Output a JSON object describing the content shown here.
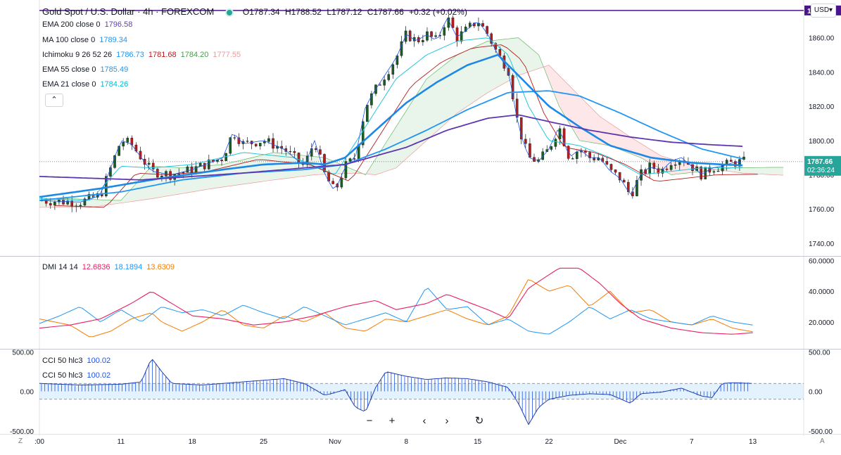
{
  "header": {
    "symbol": "Gold Spot / U.S. Dollar · 4h · FOREXCOM",
    "ohlc": {
      "o": "O1787.34",
      "h": "H1788.52",
      "l": "L1787.12",
      "c": "C1787.66",
      "chg": "+0.32 (+0.02%)"
    },
    "currency": "USD▾"
  },
  "indicators": [
    {
      "label": "EMA 200 close 0",
      "value": "1796.58",
      "color": "#673ab7"
    },
    {
      "label": "MA 100 close 0",
      "value": "1789.34",
      "color": "#2196f3"
    },
    {
      "label": "EMA 55 close 0",
      "value": "1785.49",
      "color": "#2196f3"
    },
    {
      "label": "EMA 21 close 0",
      "value": "1784.26",
      "color": "#00bcd4"
    }
  ],
  "ichimoku": {
    "label": "Ichimoku 9 26 52 26",
    "values": [
      "1786.73",
      "1781.68",
      "1784.20",
      "1777.55"
    ],
    "colors": [
      "#2196f3",
      "#b71c1c",
      "#43a047",
      "#ef9a9a"
    ]
  },
  "dmi": {
    "label": "DMI 14 14",
    "values": [
      "12.6836",
      "18.1894",
      "13.6309"
    ],
    "colors": [
      "#e91e63",
      "#2196f3",
      "#f57c00"
    ]
  },
  "cci": [
    {
      "label": "CCI 50 hlc3",
      "value": "100.02"
    },
    {
      "label": "CCI 50 hlc3",
      "value": "100.02"
    }
  ],
  "price_tags": {
    "hline": "1875.90",
    "last": "1787.66",
    "countdown": "02:36:24"
  },
  "toolbar": {
    "zoom_out": "−",
    "zoom_in": "+",
    "back": "‹",
    "forward": "›",
    "reset": "↻"
  },
  "corners": {
    "left": "Z",
    "right": "A"
  },
  "chart_data": {
    "type": "candlestick",
    "price_axis": {
      "ticks": [
        1740,
        1760,
        1780,
        1800,
        1820,
        1840,
        1860,
        1880
      ],
      "ylim": [
        1733,
        1882
      ]
    },
    "dmi_axis": {
      "ticks": [
        20,
        40,
        60
      ],
      "ylim": [
        3,
        62
      ]
    },
    "cci_axis": {
      "ticks": [
        -500,
        0,
        500
      ],
      "ylim": [
        -520,
        520
      ]
    },
    "x_labels": [
      ":00",
      "11",
      "18",
      "25",
      "Nov",
      "8",
      "15",
      "22",
      "Dec",
      "7",
      "13"
    ],
    "x_positions": [
      0,
      8,
      15,
      22,
      29,
      36,
      43,
      50,
      57,
      64,
      70
    ],
    "x_range": [
      0,
      75
    ],
    "horizontal_line": 1875.9,
    "last_price": 1787.66,
    "close_anchors": [
      [
        0,
        1765
      ],
      [
        4,
        1764
      ],
      [
        6,
        1768
      ],
      [
        8,
        1800
      ],
      [
        9,
        1798
      ],
      [
        11,
        1782
      ],
      [
        13,
        1780
      ],
      [
        15,
        1783
      ],
      [
        18,
        1790
      ],
      [
        19,
        1805
      ],
      [
        20,
        1798
      ],
      [
        22,
        1800
      ],
      [
        24,
        1795
      ],
      [
        26,
        1785
      ],
      [
        27,
        1800
      ],
      [
        28,
        1780
      ],
      [
        29,
        1770
      ],
      [
        30,
        1785
      ],
      [
        31,
        1790
      ],
      [
        32,
        1820
      ],
      [
        33,
        1830
      ],
      [
        35,
        1848
      ],
      [
        36,
        1862
      ],
      [
        37,
        1858
      ],
      [
        38,
        1862
      ],
      [
        39,
        1858
      ],
      [
        40,
        1872
      ],
      [
        41,
        1860
      ],
      [
        42,
        1865
      ],
      [
        43,
        1870
      ],
      [
        44,
        1862
      ],
      [
        45,
        1850
      ],
      [
        46,
        1842
      ],
      [
        47,
        1808
      ],
      [
        48,
        1790
      ],
      [
        49,
        1788
      ],
      [
        50,
        1795
      ],
      [
        51,
        1808
      ],
      [
        52,
        1790
      ],
      [
        53,
        1795
      ],
      [
        54,
        1790
      ],
      [
        55,
        1790
      ],
      [
        56,
        1782
      ],
      [
        57,
        1778
      ],
      [
        58,
        1768
      ],
      [
        59,
        1780
      ],
      [
        60,
        1785
      ],
      [
        61,
        1782
      ],
      [
        62,
        1788
      ],
      [
        63,
        1790
      ],
      [
        64,
        1785
      ],
      [
        65,
        1780
      ],
      [
        66,
        1784
      ],
      [
        67,
        1785
      ],
      [
        68,
        1787
      ],
      [
        69,
        1787.6
      ]
    ],
    "ema200": [
      [
        0,
        1779
      ],
      [
        10,
        1777
      ],
      [
        20,
        1781
      ],
      [
        30,
        1786
      ],
      [
        36,
        1796
      ],
      [
        40,
        1806
      ],
      [
        44,
        1813
      ],
      [
        47,
        1815
      ],
      [
        50,
        1811
      ],
      [
        54,
        1806
      ],
      [
        58,
        1802
      ],
      [
        62,
        1799
      ],
      [
        66,
        1797.5
      ],
      [
        69,
        1796.6
      ]
    ],
    "ma100": [
      [
        0,
        1765
      ],
      [
        8,
        1770
      ],
      [
        14,
        1777
      ],
      [
        20,
        1781
      ],
      [
        26,
        1783
      ],
      [
        30,
        1786
      ],
      [
        34,
        1795
      ],
      [
        38,
        1806
      ],
      [
        42,
        1818
      ],
      [
        46,
        1828
      ],
      [
        50,
        1829
      ],
      [
        53,
        1826
      ],
      [
        57,
        1816
      ],
      [
        61,
        1805
      ],
      [
        65,
        1795
      ],
      [
        69,
        1789.3
      ]
    ],
    "ema55": [
      [
        0,
        1767
      ],
      [
        6,
        1772
      ],
      [
        12,
        1778
      ],
      [
        18,
        1783
      ],
      [
        22,
        1786
      ],
      [
        26,
        1787
      ],
      [
        28,
        1786
      ],
      [
        30,
        1790
      ],
      [
        33,
        1806
      ],
      [
        36,
        1822
      ],
      [
        39,
        1834
      ],
      [
        42,
        1844
      ],
      [
        45,
        1850
      ],
      [
        47,
        1838
      ],
      [
        50,
        1820
      ],
      [
        53,
        1808
      ],
      [
        56,
        1797
      ],
      [
        60,
        1790
      ],
      [
        64,
        1787
      ],
      [
        67,
        1786
      ],
      [
        69,
        1785.5
      ]
    ],
    "ema21": [
      [
        0,
        1766
      ],
      [
        5,
        1765
      ],
      [
        8,
        1785
      ],
      [
        11,
        1784
      ],
      [
        15,
        1786
      ],
      [
        20,
        1793
      ],
      [
        25,
        1790
      ],
      [
        29,
        1780
      ],
      [
        32,
        1808
      ],
      [
        35,
        1836
      ],
      [
        38,
        1850
      ],
      [
        41,
        1858
      ],
      [
        44,
        1860
      ],
      [
        46,
        1850
      ],
      [
        48,
        1820
      ],
      [
        50,
        1800
      ],
      [
        53,
        1797
      ],
      [
        56,
        1790
      ],
      [
        59,
        1780
      ],
      [
        62,
        1782
      ],
      [
        65,
        1784
      ],
      [
        69,
        1784.3
      ]
    ],
    "dmi_plus": [
      [
        0,
        16
      ],
      [
        3,
        18
      ],
      [
        6,
        22
      ],
      [
        9,
        32
      ],
      [
        11,
        40
      ],
      [
        13,
        32
      ],
      [
        15,
        24
      ],
      [
        18,
        22
      ],
      [
        21,
        18
      ],
      [
        24,
        20
      ],
      [
        27,
        24
      ],
      [
        30,
        30
      ],
      [
        33,
        34
      ],
      [
        35,
        28
      ],
      [
        38,
        32
      ],
      [
        40,
        38
      ],
      [
        42,
        33
      ],
      [
        44,
        28
      ],
      [
        46,
        22
      ],
      [
        48,
        42
      ],
      [
        51,
        55
      ],
      [
        53,
        55
      ],
      [
        55,
        45
      ],
      [
        57,
        32
      ],
      [
        59,
        22
      ],
      [
        62,
        16
      ],
      [
        65,
        13
      ],
      [
        68,
        12
      ],
      [
        70,
        13
      ]
    ],
    "dmi_minus": [
      [
        0,
        19
      ],
      [
        2,
        24
      ],
      [
        4,
        30
      ],
      [
        6,
        20
      ],
      [
        8,
        28
      ],
      [
        10,
        20
      ],
      [
        12,
        30
      ],
      [
        14,
        26
      ],
      [
        16,
        28
      ],
      [
        18,
        24
      ],
      [
        20,
        31
      ],
      [
        22,
        26
      ],
      [
        24,
        22
      ],
      [
        26,
        30
      ],
      [
        28,
        24
      ],
      [
        30,
        18
      ],
      [
        32,
        22
      ],
      [
        34,
        26
      ],
      [
        36,
        20
      ],
      [
        38,
        43
      ],
      [
        40,
        28
      ],
      [
        42,
        30
      ],
      [
        44,
        18
      ],
      [
        46,
        22
      ],
      [
        48,
        14
      ],
      [
        50,
        12
      ],
      [
        52,
        20
      ],
      [
        54,
        30
      ],
      [
        56,
        22
      ],
      [
        58,
        28
      ],
      [
        60,
        22
      ],
      [
        62,
        20
      ],
      [
        64,
        18
      ],
      [
        66,
        24
      ],
      [
        68,
        20
      ],
      [
        70,
        18
      ]
    ],
    "adx": [
      [
        0,
        22
      ],
      [
        3,
        18
      ],
      [
        5,
        10
      ],
      [
        7,
        14
      ],
      [
        9,
        22
      ],
      [
        11,
        26
      ],
      [
        12,
        20
      ],
      [
        14,
        14
      ],
      [
        16,
        20
      ],
      [
        18,
        28
      ],
      [
        20,
        18
      ],
      [
        22,
        16
      ],
      [
        24,
        24
      ],
      [
        26,
        20
      ],
      [
        28,
        26
      ],
      [
        30,
        16
      ],
      [
        32,
        14
      ],
      [
        34,
        22
      ],
      [
        36,
        20
      ],
      [
        38,
        24
      ],
      [
        40,
        28
      ],
      [
        42,
        22
      ],
      [
        44,
        18
      ],
      [
        46,
        24
      ],
      [
        48,
        48
      ],
      [
        50,
        40
      ],
      [
        52,
        44
      ],
      [
        54,
        30
      ],
      [
        56,
        40
      ],
      [
        58,
        26
      ],
      [
        60,
        28
      ],
      [
        62,
        20
      ],
      [
        64,
        18
      ],
      [
        66,
        22
      ],
      [
        68,
        16
      ],
      [
        70,
        13.6
      ]
    ],
    "cci": [
      [
        0,
        100
      ],
      [
        4,
        80
      ],
      [
        8,
        90
      ],
      [
        10,
        120
      ],
      [
        11,
        420
      ],
      [
        12,
        250
      ],
      [
        13,
        100
      ],
      [
        16,
        80
      ],
      [
        20,
        120
      ],
      [
        24,
        160
      ],
      [
        26,
        100
      ],
      [
        28,
        -50
      ],
      [
        30,
        20
      ],
      [
        31,
        -200
      ],
      [
        32,
        -260
      ],
      [
        33,
        50
      ],
      [
        34,
        250
      ],
      [
        36,
        190
      ],
      [
        38,
        150
      ],
      [
        40,
        170
      ],
      [
        42,
        160
      ],
      [
        44,
        120
      ],
      [
        46,
        50
      ],
      [
        47,
        -150
      ],
      [
        48,
        -420
      ],
      [
        49,
        -200
      ],
      [
        50,
        -100
      ],
      [
        52,
        -50
      ],
      [
        54,
        -30
      ],
      [
        56,
        -40
      ],
      [
        58,
        -150
      ],
      [
        59,
        -30
      ],
      [
        61,
        -10
      ],
      [
        63,
        40
      ],
      [
        65,
        -60
      ],
      [
        66,
        -80
      ],
      [
        67,
        100
      ],
      [
        68,
        110
      ],
      [
        70,
        100
      ]
    ]
  }
}
